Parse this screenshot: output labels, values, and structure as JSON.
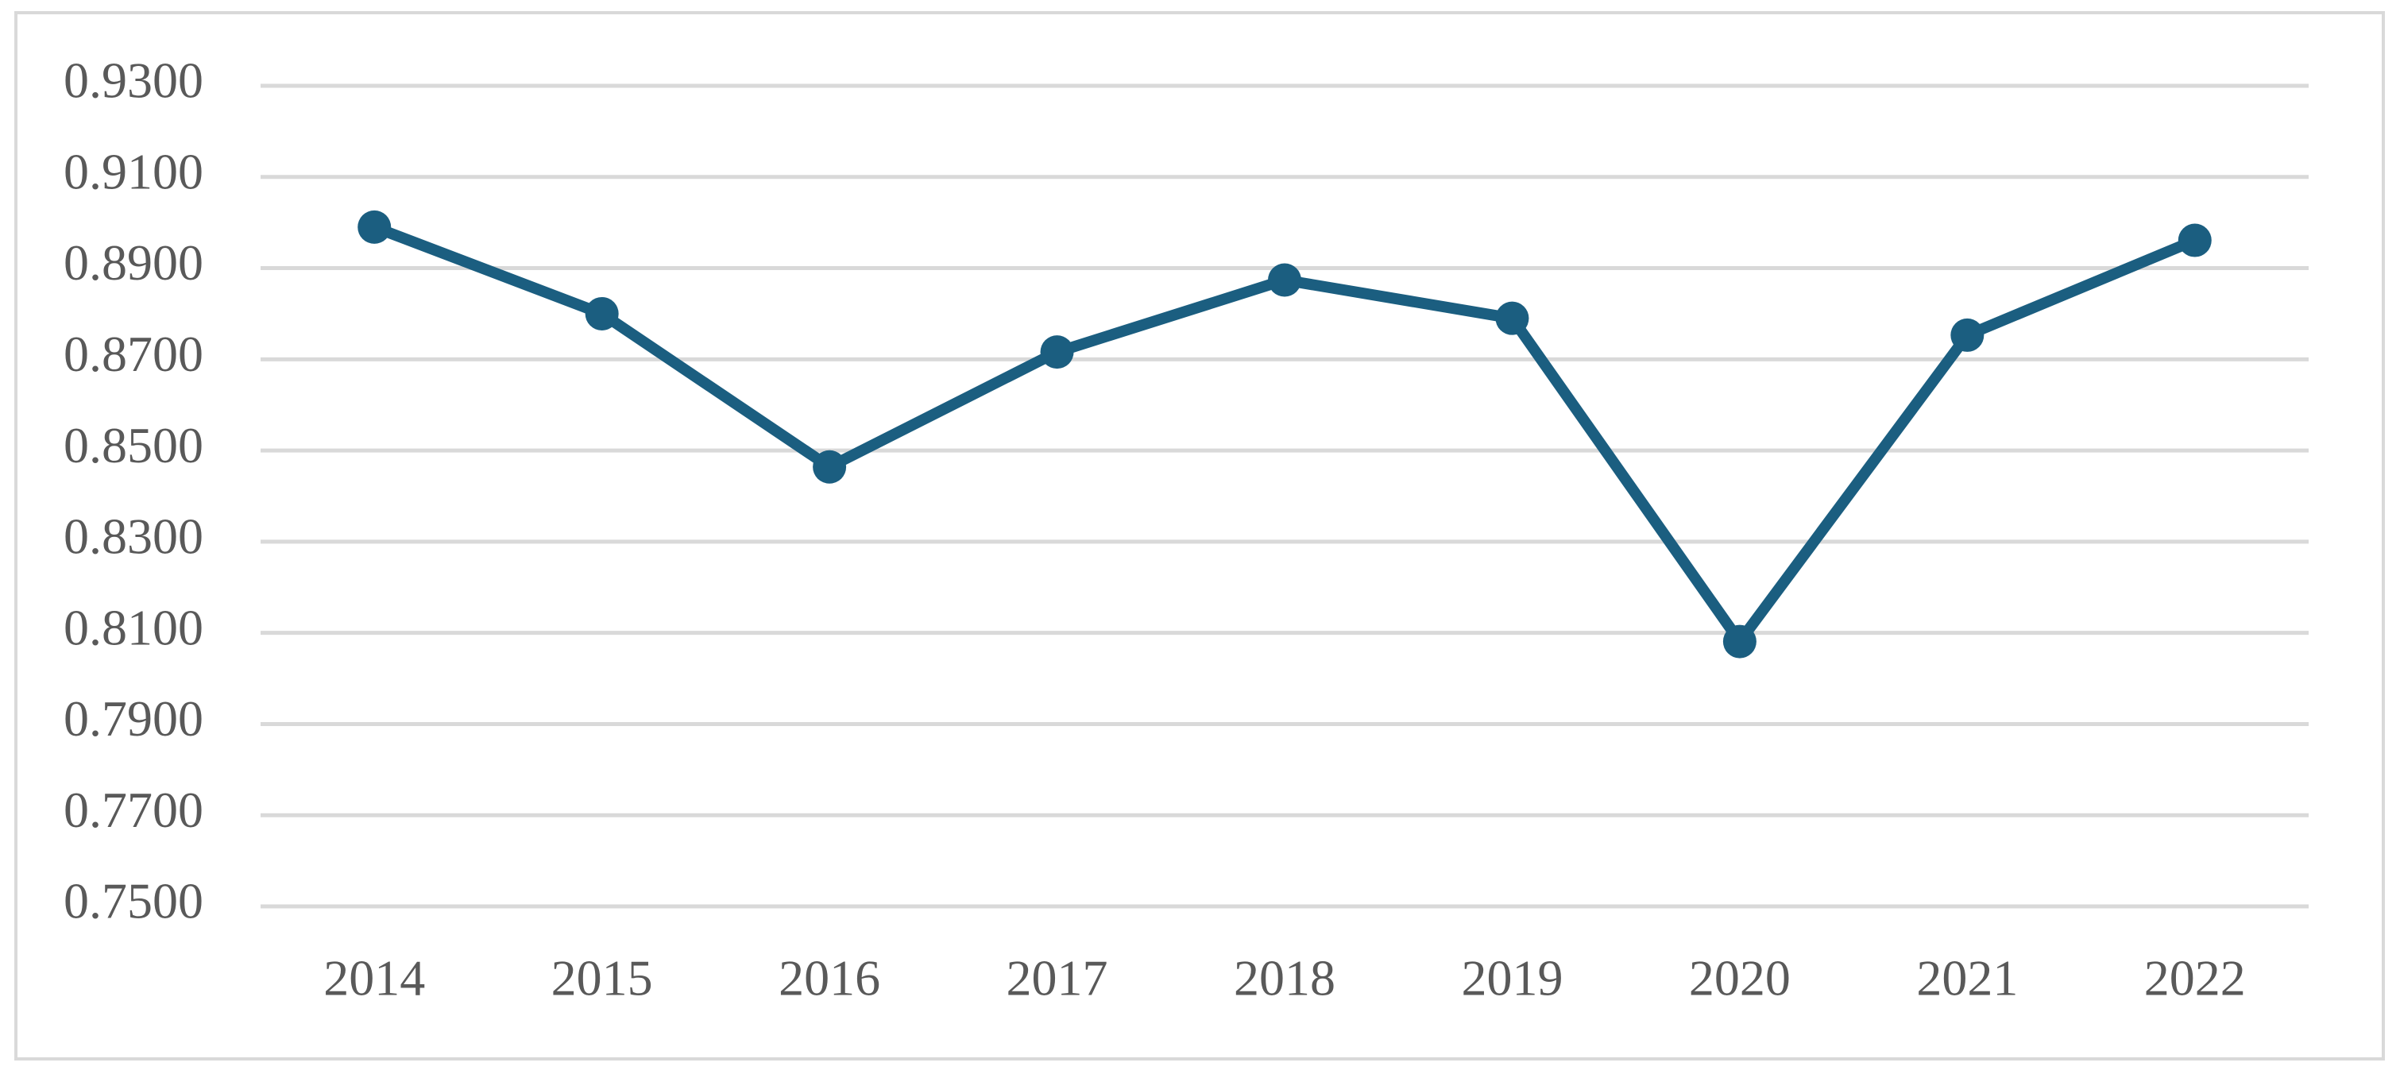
{
  "chart_data": {
    "type": "line",
    "categories": [
      "2014",
      "2015",
      "2016",
      "2017",
      "2018",
      "2019",
      "2020",
      "2021",
      "2022"
    ],
    "values": [
      0.899,
      0.88,
      0.8464,
      0.8716,
      0.8874,
      0.879,
      0.8081,
      0.8753,
      0.8961
    ],
    "color": "#1b5e80",
    "ylim": [
      0.75,
      0.93
    ],
    "yticks": [
      {
        "value": 0.75,
        "label": "0.7500"
      },
      {
        "value": 0.77,
        "label": "0.7700"
      },
      {
        "value": 0.79,
        "label": "0.7900"
      },
      {
        "value": 0.81,
        "label": "0.8100"
      },
      {
        "value": 0.83,
        "label": "0.8300"
      },
      {
        "value": 0.85,
        "label": "0.8500"
      },
      {
        "value": 0.87,
        "label": "0.8700"
      },
      {
        "value": 0.89,
        "label": "0.8900"
      },
      {
        "value": 0.91,
        "label": "0.9100"
      },
      {
        "value": 0.93,
        "label": "0.9300"
      }
    ],
    "grid": true
  }
}
